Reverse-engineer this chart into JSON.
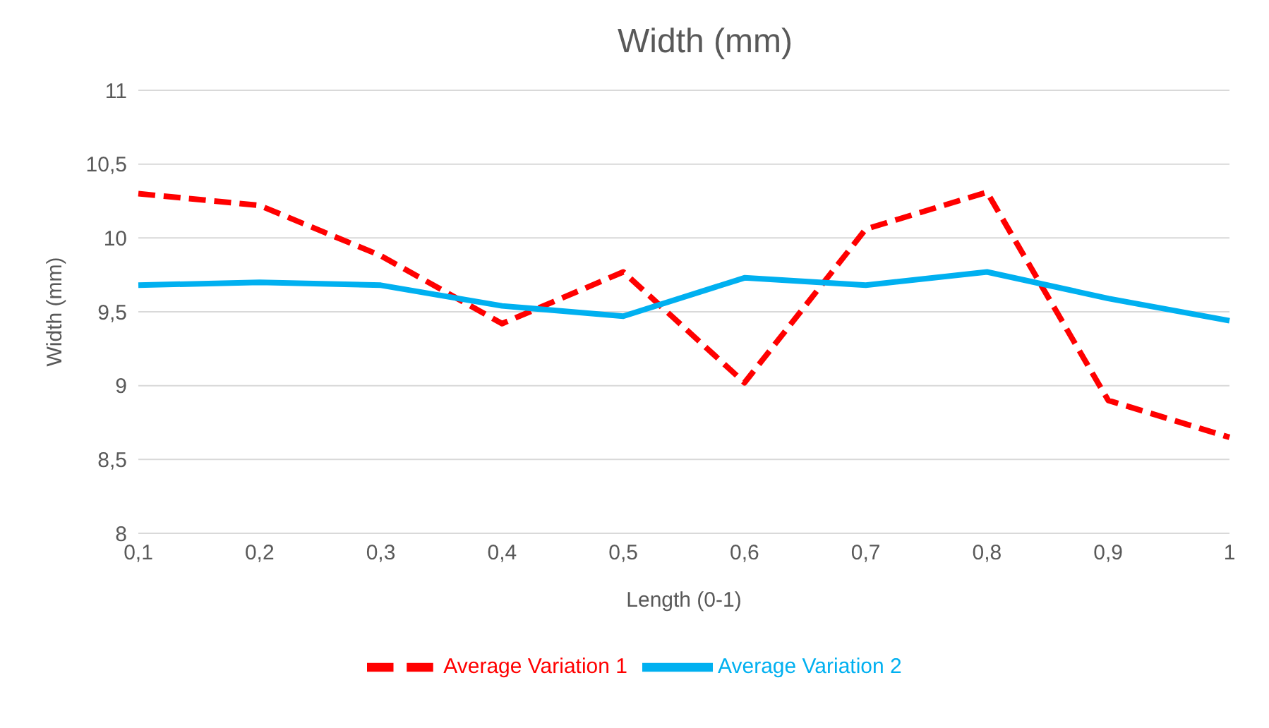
{
  "chart_data": {
    "type": "line",
    "title": "Width (mm)",
    "xlabel": "Length (0-1)",
    "ylabel": "Width (mm)",
    "categories": [
      "0,1",
      "0,2",
      "0,3",
      "0,4",
      "0,5",
      "0,6",
      "0,7",
      "0,8",
      "0,9",
      "1"
    ],
    "series": [
      {
        "name": "Average Variation 1",
        "color": "#ff0000",
        "line_style": "dashed",
        "values": [
          10.3,
          10.22,
          9.88,
          9.42,
          9.77,
          9.02,
          10.06,
          10.31,
          8.9,
          8.65
        ]
      },
      {
        "name": "Average Variation 2",
        "color": "#00b0f0",
        "line_style": "solid",
        "values": [
          9.68,
          9.7,
          9.68,
          9.54,
          9.47,
          9.73,
          9.68,
          9.77,
          9.59,
          9.44
        ]
      }
    ],
    "ylim": [
      8,
      11
    ],
    "yticks": [
      8,
      {
        "value": 8.5,
        "label": "8,5"
      },
      9,
      {
        "value": 9.5,
        "label": "9,5"
      },
      10,
      {
        "value": 10.5,
        "label": "10,5"
      },
      11
    ],
    "grid": "y",
    "legend": "bottom",
    "marker": "none"
  }
}
